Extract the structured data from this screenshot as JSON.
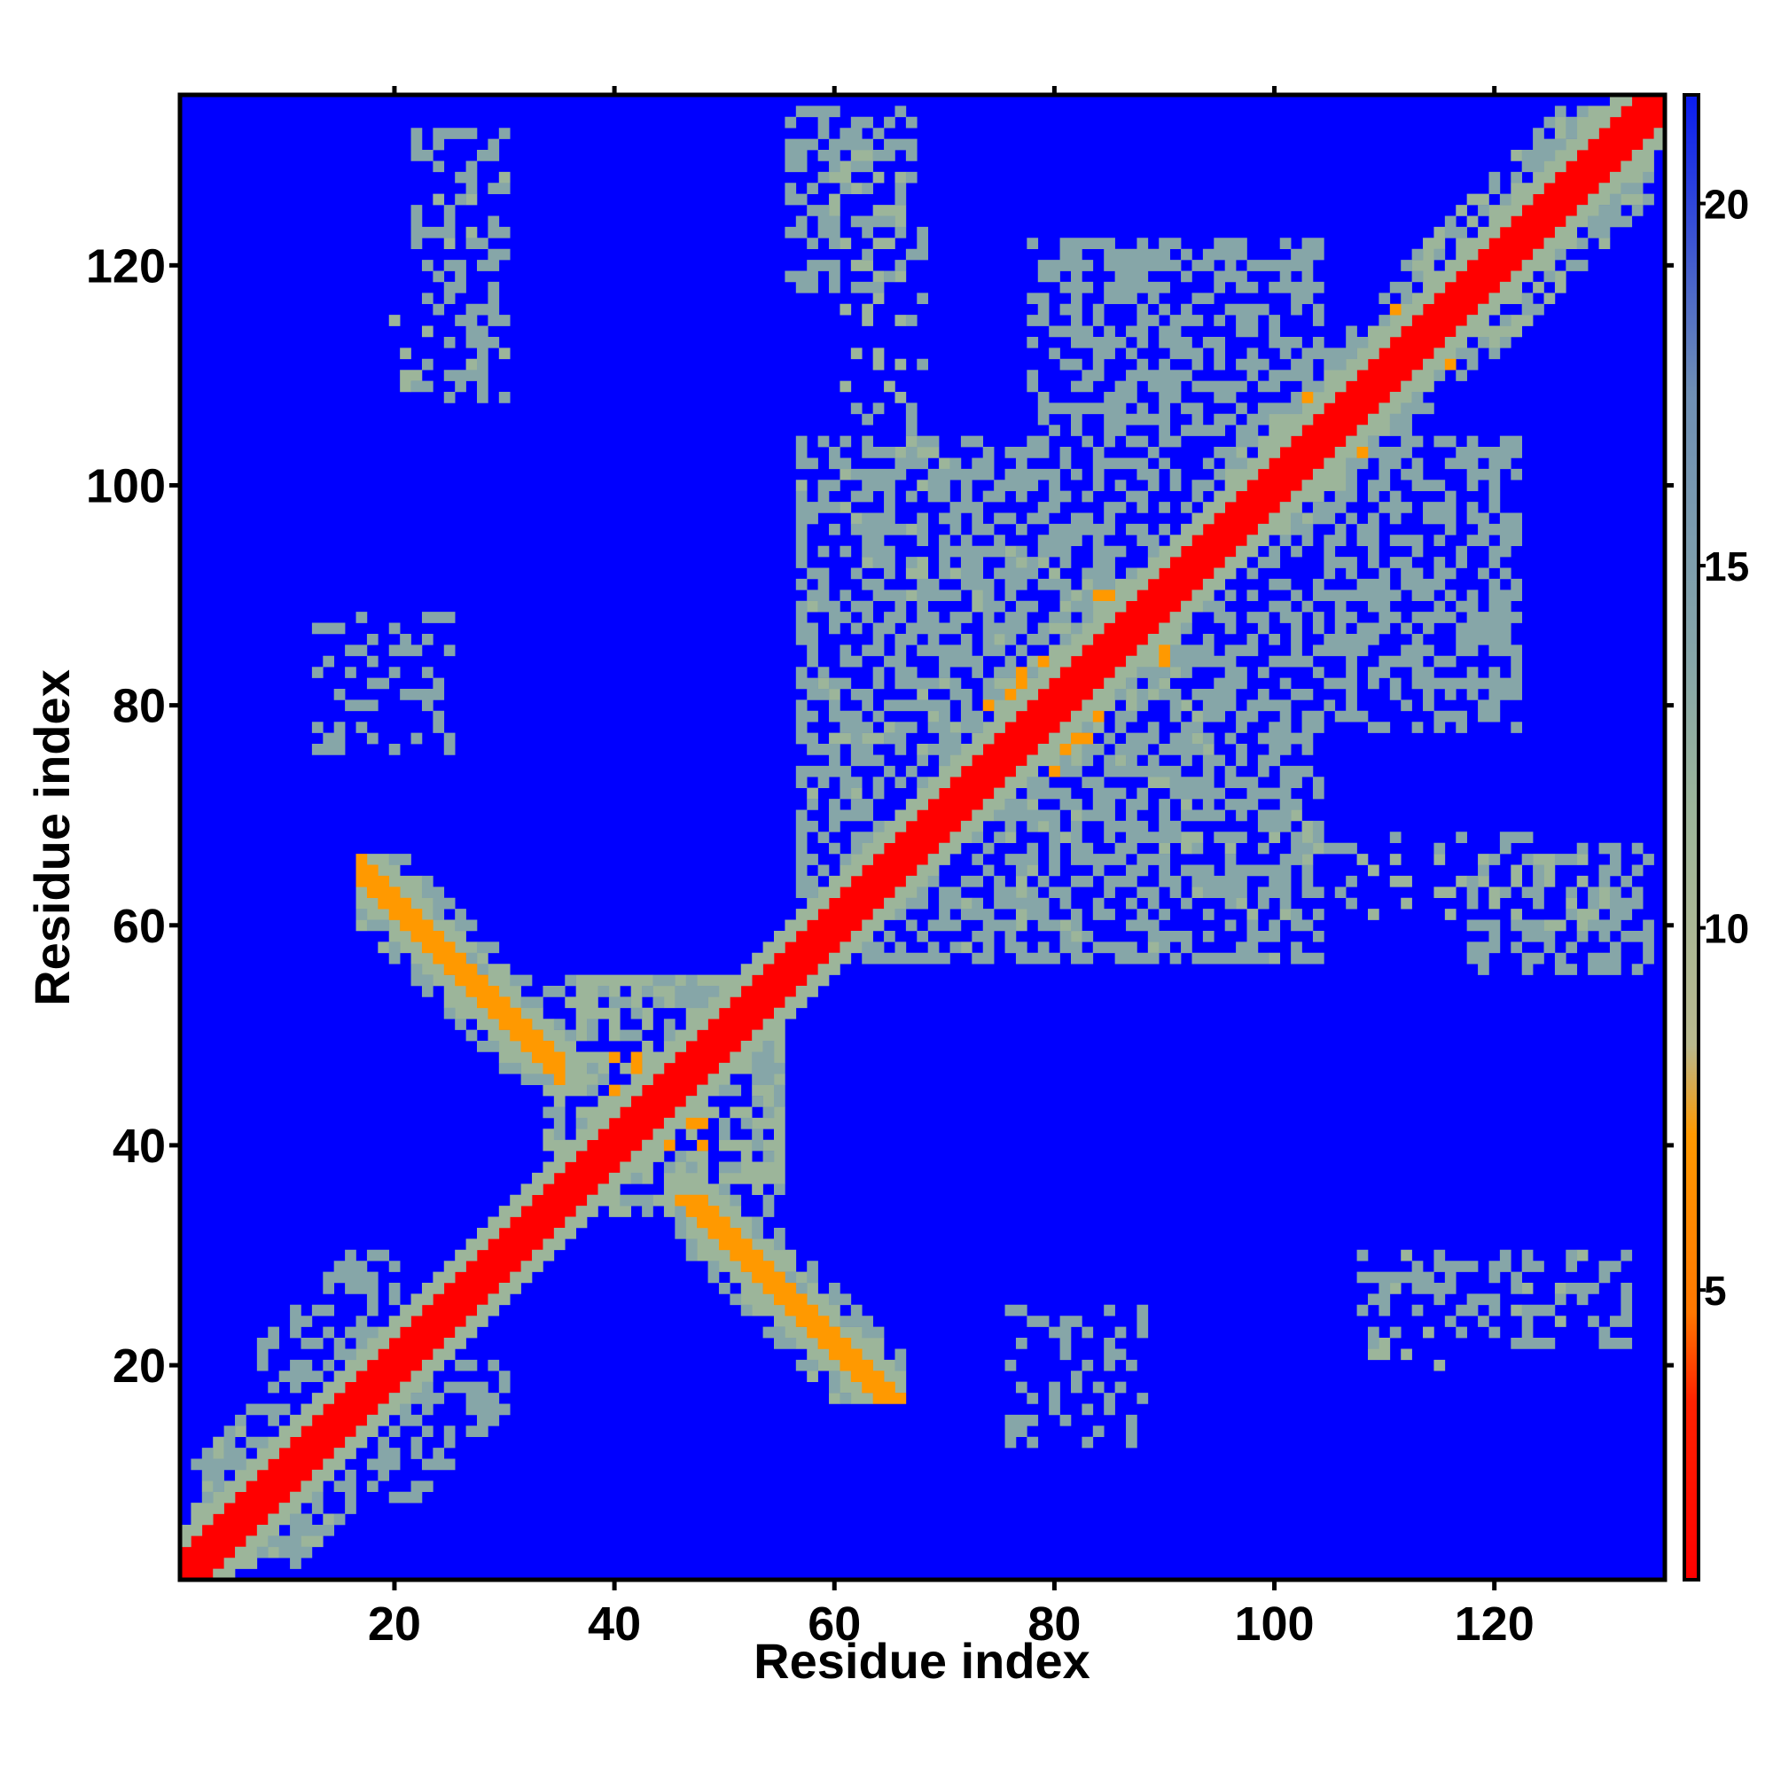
{
  "chart_data": {
    "type": "heatmap",
    "title": "",
    "xlabel": "Residue index",
    "ylabel": "Residue index",
    "x_range": [
      1,
      135
    ],
    "y_range": [
      1,
      135
    ],
    "x_ticks": [
      20,
      40,
      60,
      80,
      100,
      120
    ],
    "y_ticks": [
      20,
      40,
      60,
      80,
      100,
      120
    ],
    "colorbar": {
      "range": [
        1,
        21.5
      ],
      "ticks": [
        5,
        10,
        15,
        20
      ],
      "colors": {
        "near": "#ff0000",
        "mid": "#ff9900",
        "far_mid": "#8fae98",
        "far": "#0000ff"
      },
      "levels": [
        {
          "max": 4,
          "color": "#ff0000"
        },
        {
          "max": 8.5,
          "color": "#ff9900"
        },
        {
          "max": 12.5,
          "color": "#9cb59a"
        },
        {
          "max": 15,
          "color": "#86a6a8"
        },
        {
          "max": 21.5,
          "color": "#0000ff"
        }
      ]
    },
    "legend_position": "right",
    "grid": false,
    "cell_values_description": "symmetric residue-residue distance map; diagonal band values ~1-3; antiparallel contacts between residues 18-35 and 47-64 around 6-8; background ~21"
  }
}
